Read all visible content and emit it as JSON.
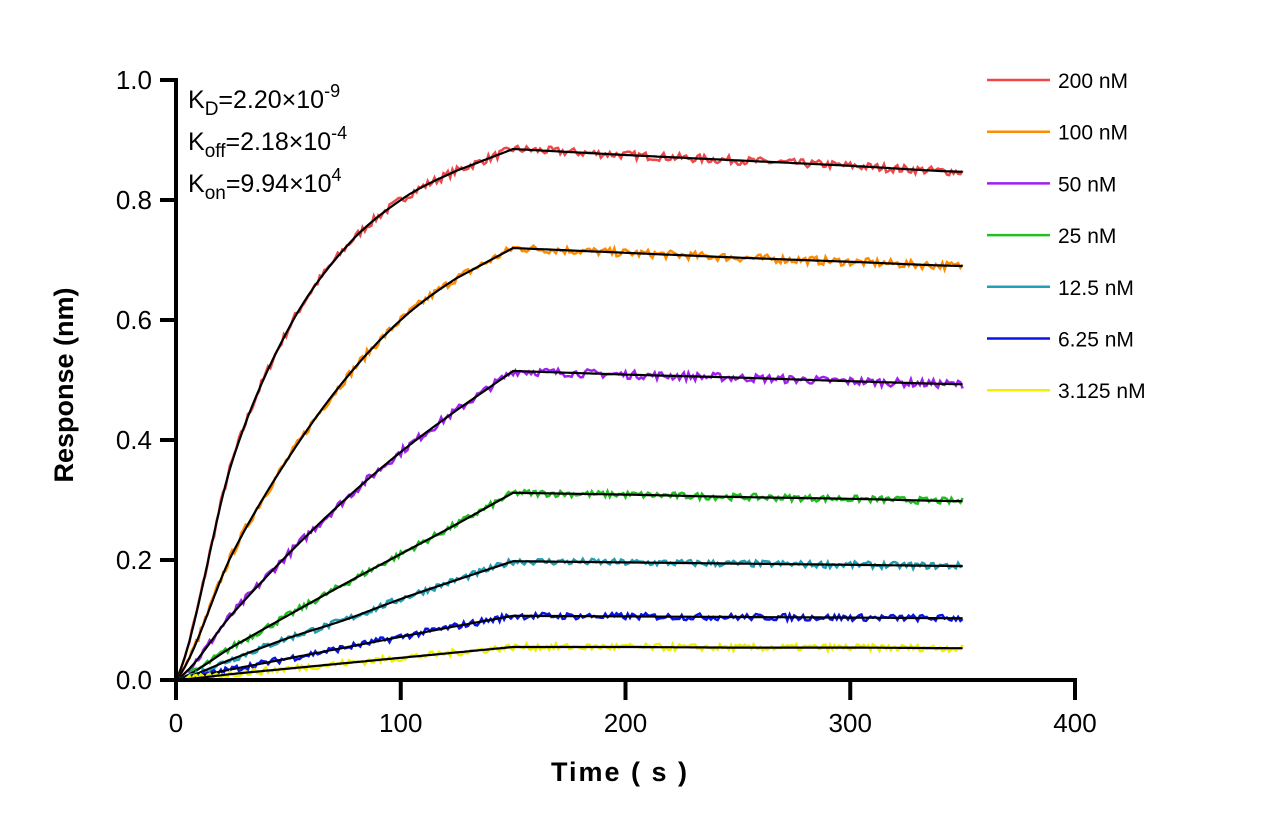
{
  "chart_data": {
    "type": "line",
    "title": "",
    "xlabel": "Time ( s )",
    "ylabel": "Response (nm)",
    "xlim": [
      0,
      400
    ],
    "ylim": [
      0,
      1.0
    ],
    "xticks": [
      "0",
      "100",
      "200",
      "300",
      "400"
    ],
    "yticks": [
      "0.0",
      "0.2",
      "0.4",
      "0.6",
      "0.8",
      "1.0"
    ],
    "grid": false,
    "legend_position": "top-right",
    "annotations": [
      {
        "base": "K",
        "sub": "D",
        "value": "=2.20×10",
        "exp": "-9"
      },
      {
        "base": "K",
        "sub": "off",
        "value": "=2.18×10",
        "exp": "-4"
      },
      {
        "base": "K",
        "sub": "on",
        "value": "=9.94×10",
        "exp": "4"
      }
    ],
    "fit_color": "#000000",
    "x": [
      0,
      25,
      50,
      75,
      100,
      125,
      150,
      200,
      250,
      300,
      350
    ],
    "series": [
      {
        "name": "200 nM",
        "color": "#f04848",
        "fit": [
          0,
          0.364,
          0.585,
          0.719,
          0.8,
          0.849,
          0.885,
          0.875,
          0.866,
          0.857,
          0.847
        ]
      },
      {
        "name": "100 nM",
        "color": "#ff8c00",
        "fit": [
          0,
          0.21,
          0.37,
          0.5,
          0.6,
          0.67,
          0.72,
          0.712,
          0.704,
          0.697,
          0.69
        ]
      },
      {
        "name": "50 nM",
        "color": "#a020f0",
        "fit": [
          0,
          0.11,
          0.21,
          0.3,
          0.38,
          0.45,
          0.515,
          0.509,
          0.504,
          0.498,
          0.493
        ]
      },
      {
        "name": "25 nM",
        "color": "#20c020",
        "fit": [
          0,
          0.055,
          0.108,
          0.16,
          0.21,
          0.26,
          0.312,
          0.309,
          0.305,
          0.302,
          0.298
        ]
      },
      {
        "name": "12.5 nM",
        "color": "#1fa0b4",
        "fit": [
          0,
          0.035,
          0.07,
          0.1,
          0.135,
          0.167,
          0.198,
          0.196,
          0.194,
          0.192,
          0.19
        ]
      },
      {
        "name": "6.25 nM",
        "color": "#0a14e6",
        "fit": [
          0,
          0.018,
          0.036,
          0.054,
          0.072,
          0.09,
          0.107,
          0.106,
          0.105,
          0.104,
          0.103
        ]
      },
      {
        "name": "3.125 nM",
        "color": "#f0f000",
        "fit": [
          0,
          0.01,
          0.019,
          0.028,
          0.037,
          0.046,
          0.055,
          0.055,
          0.054,
          0.054,
          0.053
        ]
      }
    ]
  }
}
